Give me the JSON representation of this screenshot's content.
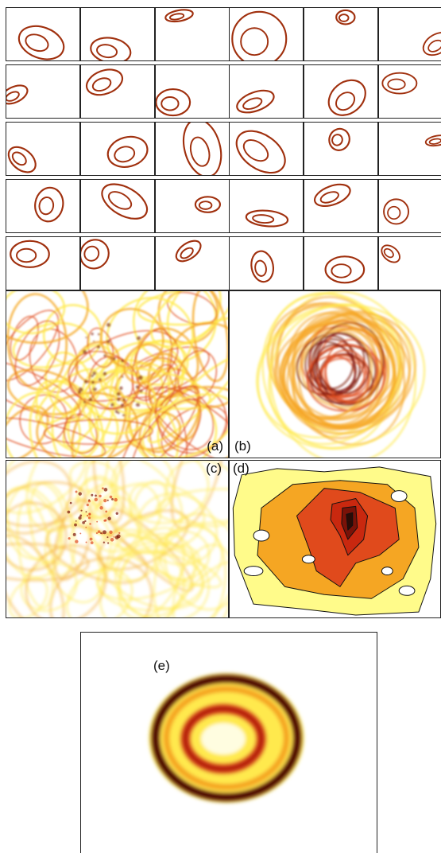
{
  "panel_labels": {
    "a": "(a)",
    "b": "(b)",
    "c": "(c)",
    "d": "(d)",
    "e": "(e)"
  },
  "colors": {
    "ring": "#a0300e",
    "ring_dark": "#5a0b06",
    "heat_light": "#ffe94d",
    "heat_mid": "#f5a623",
    "heat_hot": "#e04a1c",
    "heat_dark": "#7a1208",
    "contour_bg": "#fffb8a"
  },
  "grid": {
    "rows": 5,
    "columns": 6
  }
}
